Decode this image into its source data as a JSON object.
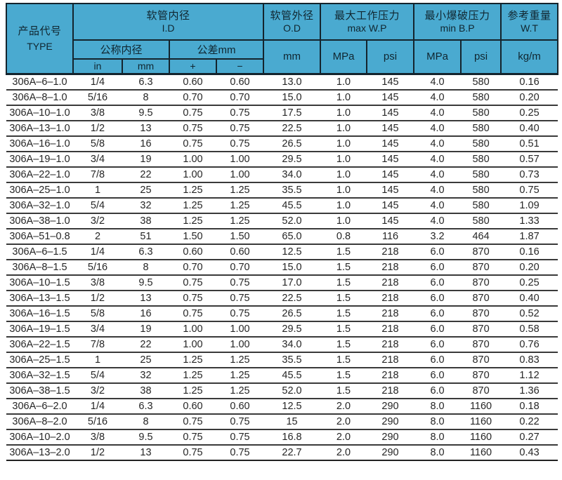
{
  "colors": {
    "header_bg": "#4aaad0",
    "header_border": "#14242d",
    "header_text": "#102630",
    "row_line": "#3a3a3a",
    "body_text": "#262626"
  },
  "header": {
    "type_zh": "产品代号",
    "type_en": "TYPE",
    "id_zh": "软管内径",
    "id_en": "I.D",
    "od_zh": "软管外径",
    "od_en": "O.D",
    "wp_zh": "最大工作压力",
    "wp_en": "max W.P",
    "bp_zh": "最小爆破压力",
    "bp_en": "min B.P",
    "wt_zh": "参考重量",
    "wt_en": "W.T",
    "nominal": "公称内径",
    "tolerance": "公差mm",
    "unit_in": "in",
    "unit_mm": "mm",
    "plus": "+",
    "minus": "−",
    "unit_mpa": "MPa",
    "unit_psi": "psi",
    "unit_kgm": "kg/m"
  },
  "rows": [
    [
      "306A–6–1.0",
      "1/4",
      "6.3",
      "0.60",
      "0.60",
      "13.0",
      "1.0",
      "145",
      "4.0",
      "580",
      "0.16"
    ],
    [
      "306A–8–1.0",
      "5/16",
      "8",
      "0.70",
      "0.70",
      "15.0",
      "1.0",
      "145",
      "4.0",
      "580",
      "0.20"
    ],
    [
      "306A–10–1.0",
      "3/8",
      "9.5",
      "0.75",
      "0.75",
      "17.5",
      "1.0",
      "145",
      "4.0",
      "580",
      "0.25"
    ],
    [
      "306A–13–1.0",
      "1/2",
      "13",
      "0.75",
      "0.75",
      "22.5",
      "1.0",
      "145",
      "4.0",
      "580",
      "0.40"
    ],
    [
      "306A–16–1.0",
      "5/8",
      "16",
      "0.75",
      "0.75",
      "26.5",
      "1.0",
      "145",
      "4.0",
      "580",
      "0.51"
    ],
    [
      "306A–19–1.0",
      "3/4",
      "19",
      "1.00",
      "1.00",
      "29.5",
      "1.0",
      "145",
      "4.0",
      "580",
      "0.57"
    ],
    [
      "306A–22–1.0",
      "7/8",
      "22",
      "1.00",
      "1.00",
      "34.0",
      "1.0",
      "145",
      "4.0",
      "580",
      "0.73"
    ],
    [
      "306A–25–1.0",
      "1",
      "25",
      "1.25",
      "1.25",
      "35.5",
      "1.0",
      "145",
      "4.0",
      "580",
      "0.75"
    ],
    [
      "306A–32–1.0",
      "5/4",
      "32",
      "1.25",
      "1.25",
      "45.5",
      "1.0",
      "145",
      "4.0",
      "580",
      "1.09"
    ],
    [
      "306A–38–1.0",
      "3/2",
      "38",
      "1.25",
      "1.25",
      "52.0",
      "1.0",
      "145",
      "4.0",
      "580",
      "1.33"
    ],
    [
      "306A–51–0.8",
      "2",
      "51",
      "1.50",
      "1.50",
      "65.0",
      "0.8",
      "116",
      "3.2",
      "464",
      "1.87"
    ],
    [
      "306A–6–1.5",
      "1/4",
      "6.3",
      "0.60",
      "0.60",
      "12.5",
      "1.5",
      "218",
      "6.0",
      "870",
      "0.16"
    ],
    [
      "306A–8–1.5",
      "5/16",
      "8",
      "0.70",
      "0.70",
      "15.0",
      "1.5",
      "218",
      "6.0",
      "870",
      "0.20"
    ],
    [
      "306A–10–1.5",
      "3/8",
      "9.5",
      "0.75",
      "0.75",
      "17.0",
      "1.5",
      "218",
      "6.0",
      "870",
      "0.25"
    ],
    [
      "306A–13–1.5",
      "1/2",
      "13",
      "0.75",
      "0.75",
      "22.5",
      "1.5",
      "218",
      "6.0",
      "870",
      "0.40"
    ],
    [
      "306A–16–1.5",
      "5/8",
      "16",
      "0.75",
      "0.75",
      "26.5",
      "1.5",
      "218",
      "6.0",
      "870",
      "0.52"
    ],
    [
      "306A–19–1.5",
      "3/4",
      "19",
      "1.00",
      "1.00",
      "29.5",
      "1.5",
      "218",
      "6.0",
      "870",
      "0.58"
    ],
    [
      "306A–22–1.5",
      "7/8",
      "22",
      "1.00",
      "1.00",
      "34.0",
      "1.5",
      "218",
      "6.0",
      "870",
      "0.76"
    ],
    [
      "306A–25–1.5",
      "1",
      "25",
      "1.25",
      "1.25",
      "35.5",
      "1.5",
      "218",
      "6.0",
      "870",
      "0.83"
    ],
    [
      "306A–32–1.5",
      "5/4",
      "32",
      "1.25",
      "1.25",
      "45.5",
      "1.5",
      "218",
      "6.0",
      "870",
      "1.12"
    ],
    [
      "306A–38–1.5",
      "3/2",
      "38",
      "1.25",
      "1.25",
      "52.0",
      "1.5",
      "218",
      "6.0",
      "870",
      "1.36"
    ],
    [
      "306A–6–2.0",
      "1/4",
      "6.3",
      "0.60",
      "0.60",
      "12.5",
      "2.0",
      "290",
      "8.0",
      "1160",
      "0.18"
    ],
    [
      "306A–8–2.0",
      "5/16",
      "8",
      "0.75",
      "0.75",
      "15",
      "2.0",
      "290",
      "8.0",
      "1160",
      "0.22"
    ],
    [
      "306A–10–2.0",
      "3/8",
      "9.5",
      "0.75",
      "0.75",
      "16.8",
      "2.0",
      "290",
      "8.0",
      "1160",
      "0.27"
    ],
    [
      "306A–13–2.0",
      "1/2",
      "13",
      "0.75",
      "0.75",
      "22.7",
      "2.0",
      "290",
      "8.0",
      "1160",
      "0.43"
    ]
  ]
}
